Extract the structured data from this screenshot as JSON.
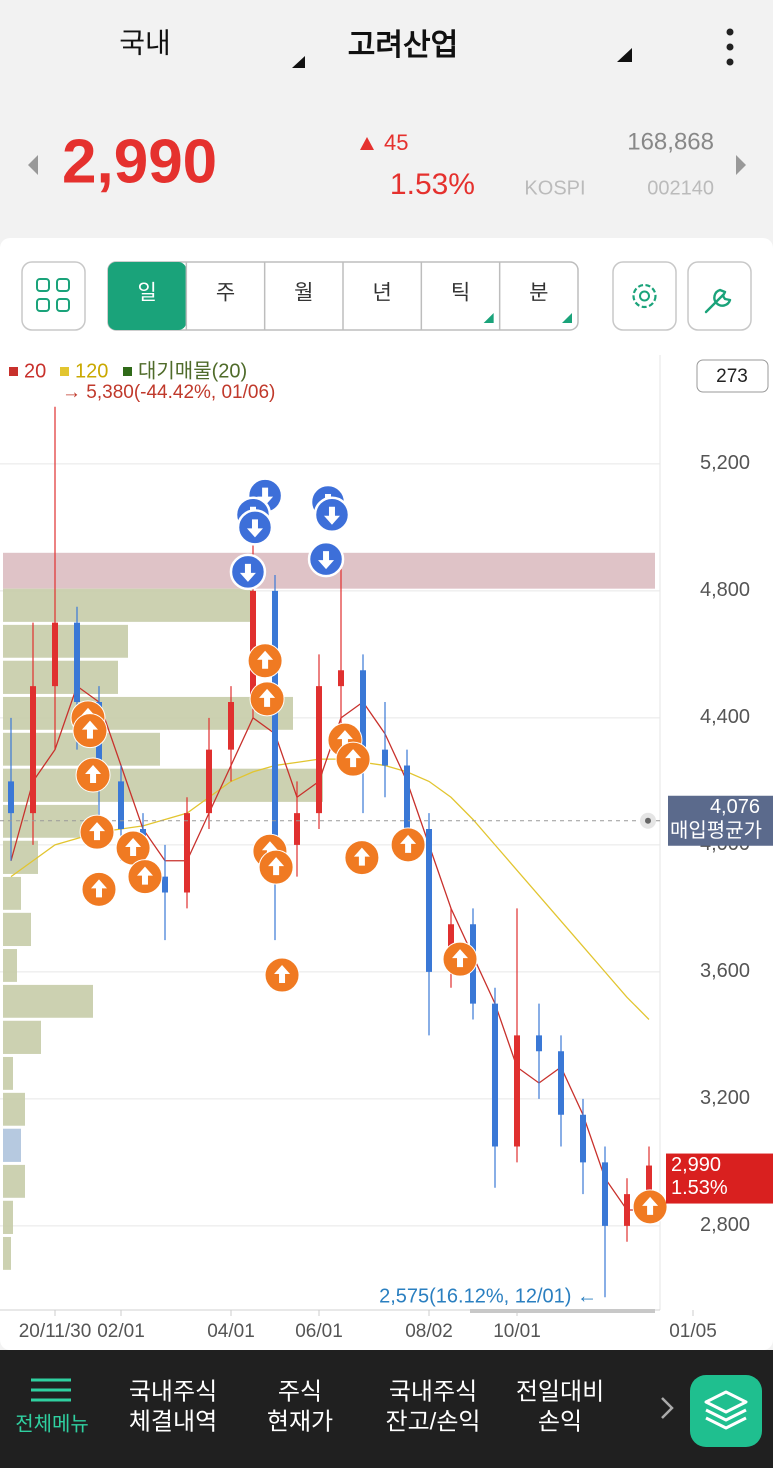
{
  "header": {
    "market": "국내",
    "stock_name": "고려산업"
  },
  "quote": {
    "price": {
      "value": 2990,
      "label": "2,990"
    },
    "change": 45,
    "change_pct": {
      "value": 1.53,
      "label": "1.53%"
    },
    "volume": {
      "value": 168868,
      "label": "168,868"
    },
    "market": "KOSPI",
    "code": "002140"
  },
  "toolbar": {
    "tabs": [
      "일",
      "주",
      "월",
      "년",
      "틱",
      "분"
    ],
    "active_tab": 0
  },
  "chart_data": {
    "type": "candlestick",
    "visible_count": 273,
    "high_annotation": "→ 5,380(-44.42%, 01/06)",
    "low_annotation": "2,575(16.12%, 12/01) ←",
    "up_color": "#e0302f",
    "down_color": "#3a78d6",
    "ylim": [
      2535,
      5543
    ],
    "yticks": [
      {
        "value": 2800,
        "label": "2,800"
      },
      {
        "value": 3200,
        "label": "3,200"
      },
      {
        "value": 3600,
        "label": "3,600"
      },
      {
        "value": 4000,
        "label": "4,000"
      },
      {
        "value": 4400,
        "label": "4,400"
      },
      {
        "value": 4800,
        "label": "4,800"
      },
      {
        "value": 5200,
        "label": "5,200"
      }
    ],
    "grid": true,
    "categories": [
      null,
      null,
      "20/11/30",
      null,
      null,
      "02/01",
      null,
      null,
      null,
      null,
      "04/01",
      null,
      null,
      null,
      "06/01",
      null,
      null,
      null,
      null,
      "08/02",
      null,
      null,
      null,
      "10/01",
      null,
      null,
      null,
      null,
      null,
      null,
      null,
      "01/05"
    ],
    "open": [
      4200,
      4100,
      4500,
      4700,
      4450,
      4200,
      4050,
      3900,
      3850,
      4100,
      4300,
      4450,
      4800,
      4000,
      4100,
      4500,
      4550,
      4300,
      4250,
      4050,
      3600,
      3750,
      3500,
      3050,
      3400,
      3350,
      3150,
      3000,
      2800,
      2900,
      null,
      null
    ],
    "high": [
      4400,
      4700,
      5380,
      4750,
      4500,
      4250,
      4100,
      4000,
      4150,
      4400,
      4500,
      4950,
      4850,
      4200,
      4600,
      4900,
      4600,
      4450,
      4300,
      4100,
      3800,
      3800,
      3550,
      3800,
      3500,
      3400,
      3200,
      3050,
      2950,
      3050,
      null,
      null
    ],
    "low": [
      3950,
      4000,
      4300,
      4300,
      4050,
      3950,
      3850,
      3700,
      3800,
      4050,
      4200,
      4400,
      3700,
      3900,
      4050,
      4350,
      4100,
      4150,
      3950,
      3400,
      3550,
      3450,
      2920,
      3000,
      3200,
      3050,
      2900,
      2575,
      2750,
      2850,
      null,
      null
    ],
    "close": [
      4100,
      4500,
      4700,
      4450,
      4200,
      4050,
      3900,
      3850,
      4100,
      4300,
      4450,
      4800,
      4000,
      4100,
      4500,
      4550,
      4300,
      4250,
      4050,
      3600,
      3750,
      3500,
      3050,
      3400,
      3350,
      3150,
      3000,
      2800,
      2900,
      2990,
      null,
      null
    ],
    "series": [
      {
        "name": "20",
        "color": "#c8312c",
        "values": [
          3950,
          4200,
          4300,
          4500,
          4450,
          4250,
          4050,
          3950,
          3950,
          4100,
          4250,
          4400,
          4350,
          4150,
          4200,
          4400,
          4450,
          4350,
          4200,
          4000,
          3800,
          3650,
          3500,
          3300,
          3250,
          3300,
          3150,
          2950,
          2850,
          2850,
          null,
          null
        ]
      },
      {
        "name": "120",
        "color": "#e2c530",
        "values": [
          3900,
          3950,
          4000,
          4020,
          4040,
          4050,
          4060,
          4080,
          4100,
          4150,
          4200,
          4230,
          4250,
          4260,
          4270,
          4270,
          4260,
          4250,
          4230,
          4200,
          4150,
          4080,
          4000,
          3920,
          3840,
          3760,
          3680,
          3600,
          3520,
          3450,
          null,
          null
        ]
      }
    ],
    "volume_profile": {
      "name": "대기매물(20)",
      "color": "#c6cca8",
      "legend_color": "#2f6a18",
      "highlight_bin": 16,
      "highlight_color": "#aec3dd",
      "bins": [
        4920,
        4807,
        4693,
        4580,
        4466,
        4353,
        4240,
        4126,
        4013,
        3899,
        3786,
        3672,
        3559,
        3446,
        3332,
        3219,
        3106,
        2992,
        2879,
        2765,
        2652
      ],
      "values": [
        0,
        250,
        125,
        115,
        290,
        157,
        320,
        95,
        35,
        18,
        28,
        14,
        90,
        38,
        10,
        22,
        18,
        22,
        10,
        8
      ]
    },
    "zone": {
      "from": 4807,
      "to": 4920,
      "color": "#d9b9bd"
    },
    "avg_price": {
      "value": 4076,
      "label": "4,076",
      "name": "매입평균가"
    },
    "sell_signals": [
      {
        "x": 11.55,
        "price": 5100
      },
      {
        "x": 11.0,
        "price": 5040
      },
      {
        "x": 11.09,
        "price": 5000
      },
      {
        "x": 10.77,
        "price": 4860
      },
      {
        "x": 14.41,
        "price": 5080
      },
      {
        "x": 14.59,
        "price": 5040
      },
      {
        "x": 14.32,
        "price": 4900
      }
    ],
    "buy_signals": [
      {
        "x": 3.5,
        "price": 4400
      },
      {
        "x": 3.59,
        "price": 4360
      },
      {
        "x": 3.73,
        "price": 4220
      },
      {
        "x": 3.91,
        "price": 4040
      },
      {
        "x": 4.0,
        "price": 3860
      },
      {
        "x": 5.55,
        "price": 3990
      },
      {
        "x": 6.09,
        "price": 3900
      },
      {
        "x": 11.55,
        "price": 4580
      },
      {
        "x": 11.64,
        "price": 4460
      },
      {
        "x": 11.77,
        "price": 3980
      },
      {
        "x": 12.05,
        "price": 3930
      },
      {
        "x": 12.32,
        "price": 3590
      },
      {
        "x": 15.18,
        "price": 4330
      },
      {
        "x": 15.55,
        "price": 4270
      },
      {
        "x": 15.95,
        "price": 3960
      },
      {
        "x": 18.05,
        "price": 4000
      },
      {
        "x": 20.41,
        "price": 3640
      },
      {
        "x": 29.05,
        "price": 2860
      }
    ]
  },
  "bottom_nav": {
    "menu": "전체메뉴",
    "items": [
      [
        "국내주식",
        "체결내역"
      ],
      [
        "주식",
        "현재가"
      ],
      [
        "국내주식",
        "잔고/손익"
      ],
      [
        "전일대비",
        "손익"
      ]
    ]
  }
}
